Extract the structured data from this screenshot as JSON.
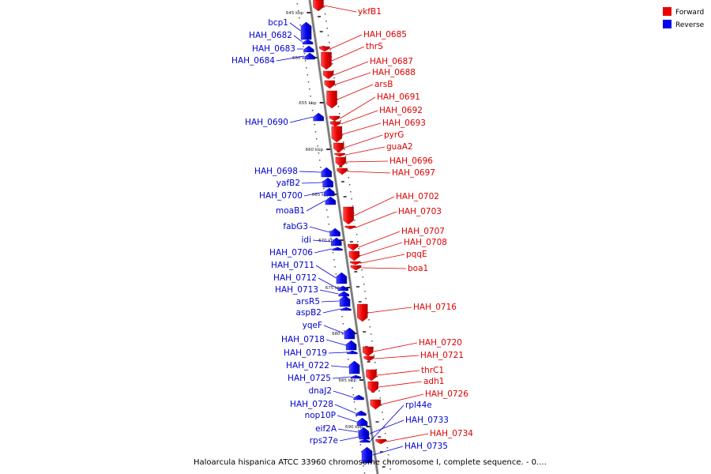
{
  "legend": {
    "forward_label": "Forward",
    "reverse_label": "Reverse",
    "forward_color": "#ee0000",
    "reverse_color": "#0000ee"
  },
  "caption": "Haloarcula hispanica ATCC 33960 chromosome chromosome I, complete sequence. - 0....",
  "ticks": [
    "645 kbp",
    "650 kbp",
    "655 kbp",
    "660 kbp",
    "665 kbp",
    "670 kbp",
    "675 kbp",
    "680 kbp",
    "685 kbp",
    "690 kbp"
  ],
  "forward_genes": [
    "ykfB1",
    "HAH_0685",
    "thrS",
    "HAH_0687",
    "HAH_0688",
    "arsB",
    "HAH_0691",
    "HAH_0692",
    "HAH_0693",
    "pyrG",
    "guaA2",
    "HAH_0696",
    "HAH_0697",
    "HAH_0702",
    "HAH_0703",
    "HAH_0707",
    "HAH_0708",
    "pqqE",
    "boa1",
    "HAH_0716",
    "HAH_0720",
    "HAH_0721",
    "thrC1",
    "adh1",
    "HAH_0726",
    "HAH_0734"
  ],
  "reverse_genes": [
    "bcp1",
    "HAH_0682",
    "HAH_0683",
    "HAH_0684",
    "HAH_0690",
    "HAH_0698",
    "yafB2",
    "HAH_0700",
    "moaB1",
    "fabG3",
    "idi",
    "HAH_0706",
    "HAH_0711",
    "HAH_0712",
    "HAH_0713",
    "arsR5",
    "aspB2",
    "yqeF",
    "HAH_0718",
    "HAH_0719",
    "HAH_0722",
    "HAH_0725",
    "dnaJ2",
    "HAH_0728",
    "nop10P",
    "eif2A",
    "rps27e",
    "rpl44e",
    "HAH_0733",
    "HAH_0735"
  ]
}
